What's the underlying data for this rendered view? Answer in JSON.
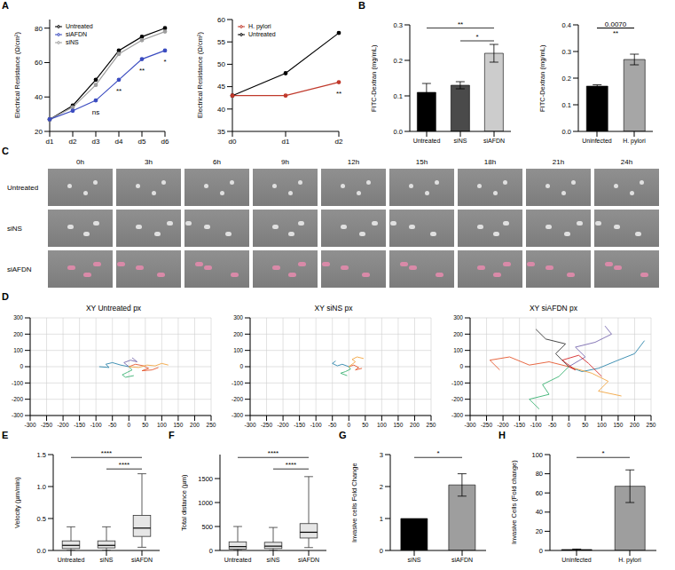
{
  "chart_data": [
    {
      "panel": "A",
      "type": "line",
      "categories": [
        "d1",
        "d2",
        "d3",
        "d4",
        "d5",
        "d6"
      ],
      "y_label": "Electrical Resistance (Ω/cm²)",
      "ylim": [
        20,
        85
      ],
      "yticks": [
        20,
        40,
        60,
        80
      ],
      "legend": "top-left",
      "marker": "circle",
      "series": [
        {
          "name": "Untreated",
          "color": "#000000",
          "values": [
            27,
            35,
            50,
            67,
            75,
            80
          ]
        },
        {
          "name": "siNS",
          "color": "#9e9e9e",
          "values": [
            27,
            34,
            47,
            65,
            73,
            78
          ]
        },
        {
          "name": "siAFDN",
          "color": "#3b4cc0",
          "values": [
            27,
            32,
            38,
            50,
            62,
            67
          ]
        }
      ],
      "annotations": [
        {
          "x": "d3",
          "text": "ns"
        },
        {
          "x": "d4",
          "text": "**"
        },
        {
          "x": "d5",
          "text": "**"
        },
        {
          "x": "d6",
          "text": "*"
        }
      ]
    },
    {
      "type": "line",
      "categories": [
        "d0",
        "d1",
        "d2"
      ],
      "y_label": "Electrical Resistance (Ω/cm²)",
      "ylim": [
        35,
        60
      ],
      "yticks": [
        35,
        40,
        45,
        50,
        55,
        60
      ],
      "legend": "top-left",
      "marker": "circle",
      "series": [
        {
          "name": "Untreated",
          "color": "#000000",
          "values": [
            43,
            48,
            57
          ]
        },
        {
          "name": "H. pylori",
          "color": "#c0392b",
          "values": [
            43,
            43,
            46
          ]
        }
      ],
      "annotations": [
        {
          "x": "d2",
          "text": "**"
        }
      ]
    },
    {
      "panel": "B",
      "type": "bar",
      "categories": [
        "Untreated",
        "siNS",
        "siAFDN"
      ],
      "values": [
        0.11,
        0.13,
        0.22
      ],
      "errors": [
        0.025,
        0.01,
        0.025
      ],
      "colors": [
        "#000000",
        "#4a4a4a",
        "#cccccc"
      ],
      "y_label": "FITC-Dextran (mg/mL)",
      "ylim": [
        0,
        0.3
      ],
      "yticks": [
        {
          "value": 0,
          "label": "0.0"
        },
        0.1,
        0.2,
        0.3
      ],
      "significance": [
        {
          "from": "Untreated",
          "to": "siAFDN",
          "label": "**"
        },
        {
          "from": "siNS",
          "to": "siAFDN",
          "label": "*"
        }
      ]
    },
    {
      "type": "bar",
      "categories": [
        "Uninfected",
        "H. pylori"
      ],
      "values": [
        0.17,
        0.27
      ],
      "errors": [
        0.005,
        0.02
      ],
      "colors": [
        "#000000",
        "#a6a6a6"
      ],
      "y_label": "FITC-Dextran (mg/mL)",
      "ylim": [
        0,
        0.4
      ],
      "yticks": [
        {
          "value": 0,
          "label": "0.0"
        },
        0.1,
        0.2,
        0.3,
        0.4
      ],
      "significance": [
        {
          "from": "Uninfected",
          "to": "H. pylori",
          "label": "0.0070",
          "label_below": "**"
        }
      ]
    },
    {
      "panel": "C",
      "type": "image",
      "time_labels": [
        "0h",
        "3h",
        "6h",
        "9h",
        "12h",
        "15h",
        "18h",
        "21h",
        "24h"
      ],
      "row_labels": [
        "Untreated",
        "siNS",
        "siAFDN"
      ]
    },
    {
      "panel": "D",
      "type": "scatter",
      "title": "XY Untreated px",
      "xlim": [
        -300,
        250
      ],
      "xticks": [
        -300,
        -250,
        -200,
        -150,
        -100,
        -50,
        0,
        50,
        100,
        150,
        200,
        250
      ],
      "ylim": [
        -300,
        300
      ],
      "yticks": [
        -300,
        -200,
        -100,
        0,
        100,
        200,
        300
      ],
      "grid": true,
      "line_style": "solid",
      "tracks": [
        {
          "color": "#e4572e",
          "x": [
            0,
            20,
            45,
            60,
            40,
            70,
            90
          ],
          "y": [
            0,
            15,
            5,
            -10,
            -25,
            -20,
            -5
          ]
        },
        {
          "color": "#2e86ab",
          "x": [
            0,
            -25,
            -50,
            -70,
            -60,
            -90
          ],
          "y": [
            0,
            10,
            25,
            15,
            -5,
            0
          ]
        },
        {
          "color": "#3bb273",
          "x": [
            0,
            10,
            -5,
            -20,
            -10,
            15
          ],
          "y": [
            0,
            -20,
            -35,
            -50,
            -65,
            -55
          ]
        },
        {
          "color": "#7768ae",
          "x": [
            0,
            -15,
            5,
            25,
            10
          ],
          "y": [
            0,
            25,
            40,
            30,
            55
          ]
        },
        {
          "color": "#f2a541",
          "x": [
            0,
            30,
            55,
            80,
            100,
            120
          ],
          "y": [
            0,
            -5,
            10,
            5,
            20,
            10
          ]
        }
      ]
    },
    {
      "type": "scatter",
      "title": "XY siNS px",
      "xlim": [
        -300,
        250
      ],
      "xticks": [
        -300,
        -250,
        -200,
        -150,
        -100,
        -50,
        0,
        50,
        100,
        150,
        200,
        250
      ],
      "ylim": [
        -300,
        300
      ],
      "yticks": [
        -300,
        -200,
        -100,
        0,
        100,
        200,
        300
      ],
      "grid": true,
      "line_style": "solid",
      "tracks": [
        {
          "color": "#e4572e",
          "x": [
            0,
            15,
            30,
            20,
            40
          ],
          "y": [
            0,
            10,
            -5,
            -20,
            -10
          ]
        },
        {
          "color": "#2e86ab",
          "x": [
            0,
            -20,
            -35,
            -50,
            -40
          ],
          "y": [
            0,
            15,
            5,
            20,
            35
          ]
        },
        {
          "color": "#3bb273",
          "x": [
            0,
            5,
            -10,
            -25,
            -5
          ],
          "y": [
            0,
            -15,
            -30,
            -40,
            -55
          ]
        },
        {
          "color": "#f2a541",
          "x": [
            0,
            20,
            10,
            25,
            45
          ],
          "y": [
            0,
            30,
            45,
            60,
            50
          ]
        }
      ]
    },
    {
      "type": "scatter",
      "title": "XY siAFDN px",
      "xlim": [
        -300,
        250
      ],
      "xticks": [
        -300,
        -250,
        -200,
        -150,
        -100,
        -50,
        0,
        50,
        100,
        150,
        200,
        250
      ],
      "ylim": [
        -300,
        300
      ],
      "yticks": [
        -300,
        -200,
        -100,
        0,
        100,
        200,
        300
      ],
      "grid": true,
      "line_style": "solid",
      "tracks": [
        {
          "color": "#e4572e",
          "x": [
            0,
            -60,
            -120,
            -180,
            -240,
            -210
          ],
          "y": [
            0,
            30,
            10,
            60,
            40,
            -20
          ]
        },
        {
          "color": "#2e86ab",
          "x": [
            0,
            40,
            90,
            150,
            200,
            230
          ],
          "y": [
            0,
            -30,
            -10,
            40,
            80,
            160
          ]
        },
        {
          "color": "#3bb273",
          "x": [
            0,
            -30,
            -80,
            -60,
            -120,
            -90
          ],
          "y": [
            0,
            -60,
            -110,
            -170,
            -200,
            -260
          ]
        },
        {
          "color": "#7768ae",
          "x": [
            0,
            50,
            20,
            80,
            130,
            110
          ],
          "y": [
            0,
            60,
            120,
            150,
            200,
            250
          ]
        },
        {
          "color": "#f2a541",
          "x": [
            0,
            70,
            120,
            90,
            160
          ],
          "y": [
            0,
            -40,
            -90,
            -150,
            -180
          ]
        },
        {
          "color": "#333333",
          "x": [
            0,
            -40,
            -10,
            -70,
            -100
          ],
          "y": [
            0,
            80,
            140,
            170,
            230
          ]
        },
        {
          "color": "#d62728",
          "x": [
            0,
            20,
            -20,
            30,
            60,
            100
          ],
          "y": [
            0,
            -20,
            40,
            70,
            20,
            -60
          ]
        }
      ]
    },
    {
      "panel": "E",
      "type": "box",
      "categories": [
        "Untreated",
        "siNS",
        "siAFDN"
      ],
      "min": [
        0,
        0,
        0.05
      ],
      "q1": [
        0.03,
        0.04,
        0.22
      ],
      "median": [
        0.08,
        0.08,
        0.35
      ],
      "q3": [
        0.15,
        0.15,
        0.55
      ],
      "max": [
        0.37,
        0.37,
        1.2
      ],
      "y_label": "Velocity (µm/min)",
      "ylim": [
        0,
        1.5
      ],
      "yticks": [
        {
          "value": 0,
          "label": "0.0"
        },
        0.5,
        {
          "value": 1,
          "label": "1.0"
        },
        1.5
      ],
      "significance": [
        {
          "from": "Untreated",
          "to": "siAFDN",
          "label": "****"
        },
        {
          "from": "siNS",
          "to": "siAFDN",
          "label": "****"
        }
      ]
    },
    {
      "panel": "F",
      "type": "box",
      "categories": [
        "Untreated",
        "siNS",
        "siAFDN"
      ],
      "min": [
        0,
        0,
        60
      ],
      "q1": [
        30,
        40,
        260
      ],
      "median": [
        80,
        90,
        380
      ],
      "q3": [
        180,
        170,
        560
      ],
      "max": [
        500,
        480,
        1540
      ],
      "y_label": "Total distance (µm)",
      "ylim": [
        0,
        2000
      ],
      "yticks": [
        0,
        500,
        1000,
        1500
      ],
      "significance": [
        {
          "from": "Untreated",
          "to": "siAFDN",
          "label": "****"
        },
        {
          "from": "siNS",
          "to": "siAFDN",
          "label": "****"
        }
      ]
    },
    {
      "panel": "G",
      "type": "bar",
      "categories": [
        "siNS",
        "siAFDN"
      ],
      "values": [
        1,
        2.05
      ],
      "errors": [
        0,
        0.35
      ],
      "colors": [
        "#000000",
        "#9e9e9e"
      ],
      "y_label": "Invasive cells Fold Change",
      "ylim": [
        0,
        3
      ],
      "yticks": [
        0,
        1,
        2,
        3
      ],
      "significance": [
        {
          "from": "siNS",
          "to": "siAFDN",
          "label": "*"
        }
      ]
    },
    {
      "panel": "H",
      "type": "bar",
      "categories": [
        "Uninfected",
        "H. pylori"
      ],
      "values": [
        1,
        67
      ],
      "errors": [
        0.5,
        17
      ],
      "colors": [
        "#000000",
        "#9e9e9e"
      ],
      "y_label": "Invasive Cells (Fold change)",
      "ylim": [
        0,
        100
      ],
      "yticks": [
        0,
        20,
        40,
        60,
        80,
        100
      ],
      "significance": [
        {
          "from": "Uninfected",
          "to": "H. pylori",
          "label": "*"
        }
      ]
    }
  ]
}
